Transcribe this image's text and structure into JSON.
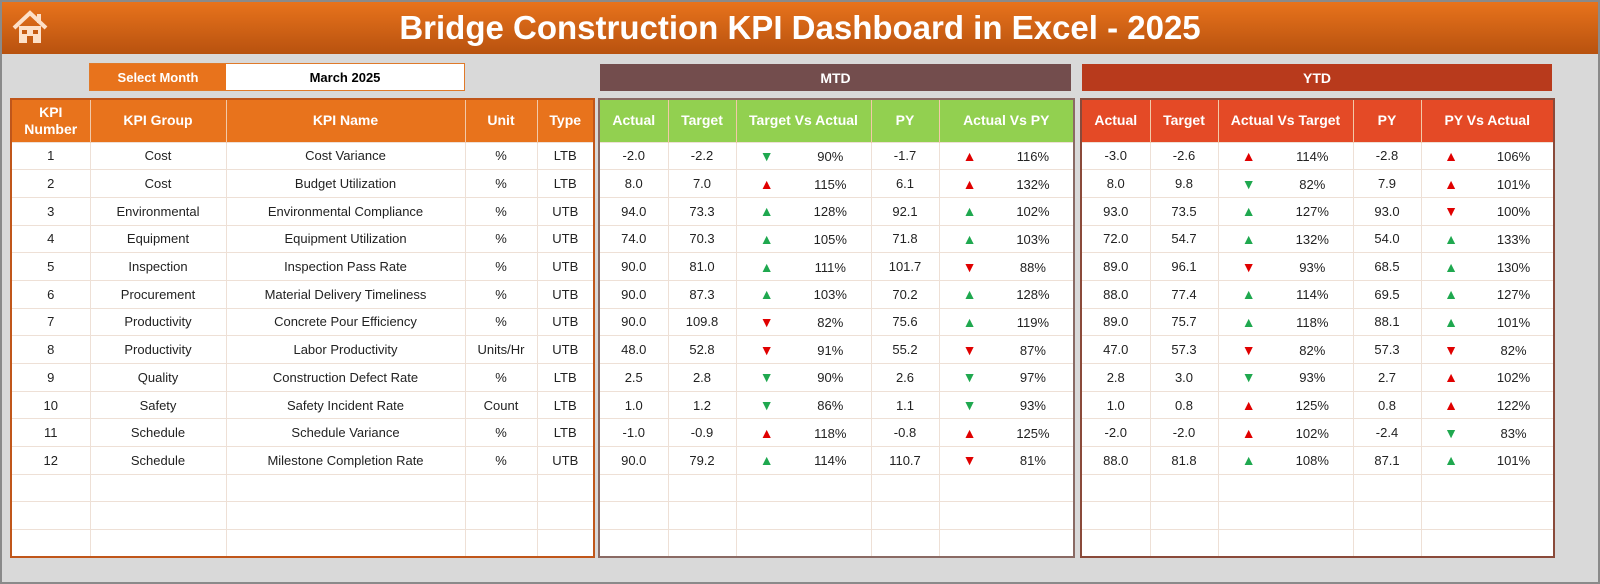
{
  "header": {
    "title": "Bridge Construction KPI Dashboard in Excel - 2025",
    "home_icon": "home-icon"
  },
  "month_selector": {
    "label": "Select Month",
    "value": "March 2025"
  },
  "sections": {
    "mtd": "MTD",
    "ytd": "YTD"
  },
  "colors": {
    "orange": "#e8731c",
    "mtd_band": "#734d4d",
    "ytd_band": "#b83a1c",
    "mtd_header": "#92d050",
    "ytd_header": "#e44a26",
    "green": "#1fa84f",
    "red": "#e00000"
  },
  "left_columns": [
    "KPI Number",
    "KPI Group",
    "KPI Name",
    "Unit",
    "Type"
  ],
  "mtd_columns": [
    "Actual",
    "Target",
    "Target Vs Actual",
    "PY",
    "Actual Vs PY"
  ],
  "ytd_columns": [
    "Actual",
    "Target",
    "Actual Vs Target",
    "PY",
    "PY Vs Actual"
  ],
  "rows": [
    {
      "n": "1",
      "g": "Cost",
      "k": "Cost Variance",
      "u": "%",
      "t": "LTB",
      "mtd": [
        "-2.0",
        "-2.2",
        "down-green",
        "90%",
        "-1.7",
        "up-red",
        "116%"
      ],
      "ytd": [
        "-3.0",
        "-2.6",
        "up-red",
        "114%",
        "-2.8",
        "up-red",
        "106%"
      ]
    },
    {
      "n": "2",
      "g": "Cost",
      "k": "Budget Utilization",
      "u": "%",
      "t": "LTB",
      "mtd": [
        "8.0",
        "7.0",
        "up-red",
        "115%",
        "6.1",
        "up-red",
        "132%"
      ],
      "ytd": [
        "8.0",
        "9.8",
        "down-green",
        "82%",
        "7.9",
        "up-red",
        "101%"
      ]
    },
    {
      "n": "3",
      "g": "Environmental",
      "k": "Environmental Compliance",
      "u": "%",
      "t": "UTB",
      "mtd": [
        "94.0",
        "73.3",
        "up-green",
        "128%",
        "92.1",
        "up-green",
        "102%"
      ],
      "ytd": [
        "93.0",
        "73.5",
        "up-green",
        "127%",
        "93.0",
        "down-red",
        "100%"
      ]
    },
    {
      "n": "4",
      "g": "Equipment",
      "k": "Equipment Utilization",
      "u": "%",
      "t": "UTB",
      "mtd": [
        "74.0",
        "70.3",
        "up-green",
        "105%",
        "71.8",
        "up-green",
        "103%"
      ],
      "ytd": [
        "72.0",
        "54.7",
        "up-green",
        "132%",
        "54.0",
        "up-green",
        "133%"
      ]
    },
    {
      "n": "5",
      "g": "Inspection",
      "k": "Inspection Pass Rate",
      "u": "%",
      "t": "UTB",
      "mtd": [
        "90.0",
        "81.0",
        "up-green",
        "111%",
        "101.7",
        "down-red",
        "88%"
      ],
      "ytd": [
        "89.0",
        "96.1",
        "down-red",
        "93%",
        "68.5",
        "up-green",
        "130%"
      ]
    },
    {
      "n": "6",
      "g": "Procurement",
      "k": "Material Delivery Timeliness",
      "u": "%",
      "t": "UTB",
      "mtd": [
        "90.0",
        "87.3",
        "up-green",
        "103%",
        "70.2",
        "up-green",
        "128%"
      ],
      "ytd": [
        "88.0",
        "77.4",
        "up-green",
        "114%",
        "69.5",
        "up-green",
        "127%"
      ]
    },
    {
      "n": "7",
      "g": "Productivity",
      "k": "Concrete Pour Efficiency",
      "u": "%",
      "t": "UTB",
      "mtd": [
        "90.0",
        "109.8",
        "down-red",
        "82%",
        "75.6",
        "up-green",
        "119%"
      ],
      "ytd": [
        "89.0",
        "75.7",
        "up-green",
        "118%",
        "88.1",
        "up-green",
        "101%"
      ]
    },
    {
      "n": "8",
      "g": "Productivity",
      "k": "Labor Productivity",
      "u": "Units/Hr",
      "t": "UTB",
      "mtd": [
        "48.0",
        "52.8",
        "down-red",
        "91%",
        "55.2",
        "down-red",
        "87%"
      ],
      "ytd": [
        "47.0",
        "57.3",
        "down-red",
        "82%",
        "57.3",
        "down-red",
        "82%"
      ]
    },
    {
      "n": "9",
      "g": "Quality",
      "k": "Construction Defect Rate",
      "u": "%",
      "t": "LTB",
      "mtd": [
        "2.5",
        "2.8",
        "down-green",
        "90%",
        "2.6",
        "down-green",
        "97%"
      ],
      "ytd": [
        "2.8",
        "3.0",
        "down-green",
        "93%",
        "2.7",
        "up-red",
        "102%"
      ]
    },
    {
      "n": "10",
      "g": "Safety",
      "k": "Safety Incident Rate",
      "u": "Count",
      "t": "LTB",
      "mtd": [
        "1.0",
        "1.2",
        "down-green",
        "86%",
        "1.1",
        "down-green",
        "93%"
      ],
      "ytd": [
        "1.0",
        "0.8",
        "up-red",
        "125%",
        "0.8",
        "up-red",
        "122%"
      ]
    },
    {
      "n": "11",
      "g": "Schedule",
      "k": "Schedule Variance",
      "u": "%",
      "t": "LTB",
      "mtd": [
        "-1.0",
        "-0.9",
        "up-red",
        "118%",
        "-0.8",
        "up-red",
        "125%"
      ],
      "ytd": [
        "-2.0",
        "-2.0",
        "up-red",
        "102%",
        "-2.4",
        "down-green",
        "83%"
      ]
    },
    {
      "n": "12",
      "g": "Schedule",
      "k": "Milestone Completion Rate",
      "u": "%",
      "t": "UTB",
      "mtd": [
        "90.0",
        "79.2",
        "up-green",
        "114%",
        "110.7",
        "down-red",
        "81%"
      ],
      "ytd": [
        "88.0",
        "81.8",
        "up-green",
        "108%",
        "87.1",
        "up-green",
        "101%"
      ]
    }
  ]
}
